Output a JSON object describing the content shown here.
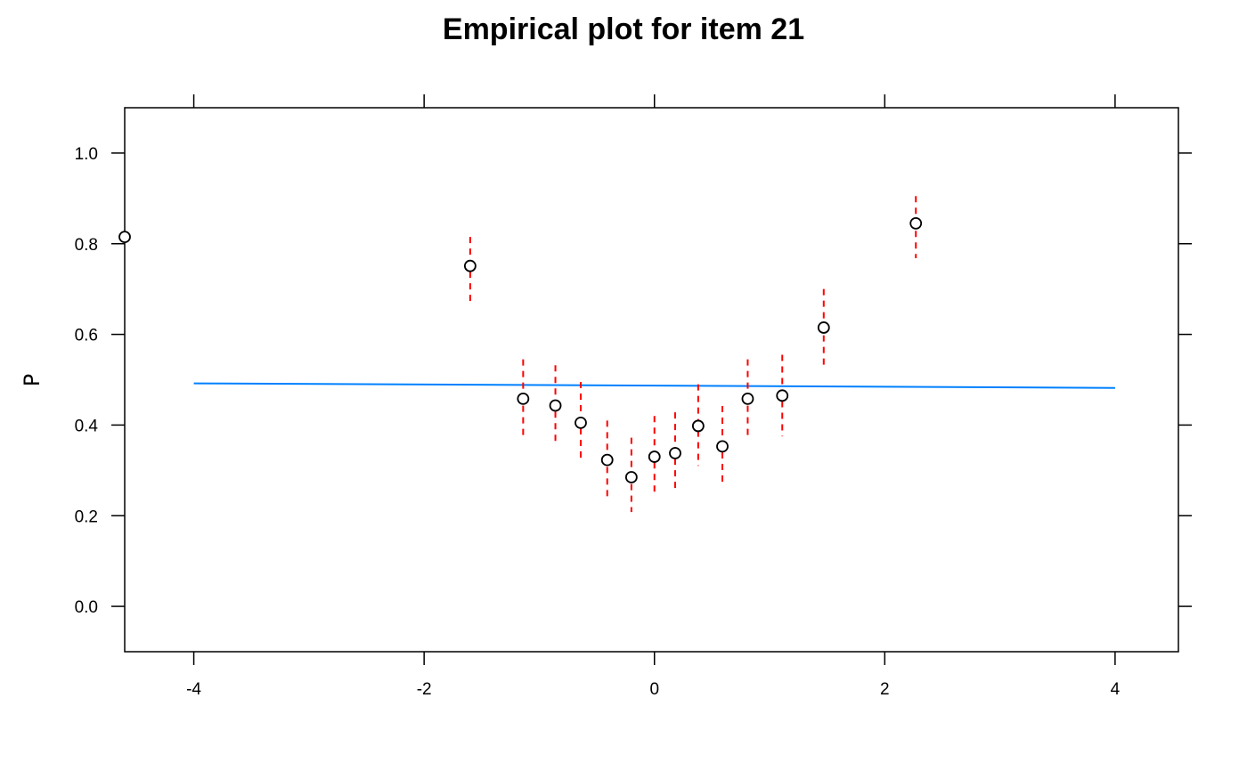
{
  "chart_data": {
    "type": "scatter",
    "title": "Empirical plot for item 21",
    "xlabel": "",
    "ylabel": "P",
    "xlim": [
      -4.6,
      4.55
    ],
    "ylim": [
      -0.1,
      1.1
    ],
    "x_ticks": [
      -4,
      -2,
      0,
      2,
      4
    ],
    "y_ticks": [
      0.0,
      0.2,
      0.4,
      0.6,
      0.8,
      1.0
    ],
    "x_tick_labels": [
      "-4",
      "-2",
      "0",
      "2",
      "4"
    ],
    "y_tick_labels": [
      "0.0",
      "0.2",
      "0.4",
      "0.6",
      "0.8",
      "1.0"
    ],
    "grid": false,
    "legend": "none",
    "points": {
      "x": [
        -4.6,
        -1.6,
        -1.14,
        -0.86,
        -0.64,
        -0.41,
        -0.2,
        0.0,
        0.18,
        0.38,
        0.59,
        0.81,
        1.11,
        1.47,
        2.27
      ],
      "y": [
        0.815,
        0.751,
        0.458,
        0.443,
        0.405,
        0.323,
        0.285,
        0.33,
        0.338,
        0.398,
        0.353,
        0.458,
        0.465,
        0.615,
        0.845
      ],
      "ci_lower": [
        0.815,
        0.665,
        0.37,
        0.355,
        0.318,
        0.24,
        0.208,
        0.245,
        0.255,
        0.31,
        0.268,
        0.37,
        0.375,
        0.522,
        0.768
      ],
      "ci_upper": [
        0.815,
        0.815,
        0.545,
        0.532,
        0.495,
        0.41,
        0.372,
        0.42,
        0.428,
        0.49,
        0.442,
        0.545,
        0.555,
        0.7,
        0.905
      ]
    },
    "series": [
      {
        "type": "line",
        "x": [
          -4,
          4
        ],
        "y": [
          0.492,
          0.482
        ]
      }
    ],
    "colors": {
      "points": "#000000",
      "ci": "#ff0000",
      "line": "#0080ff",
      "axes": "#000000"
    }
  }
}
